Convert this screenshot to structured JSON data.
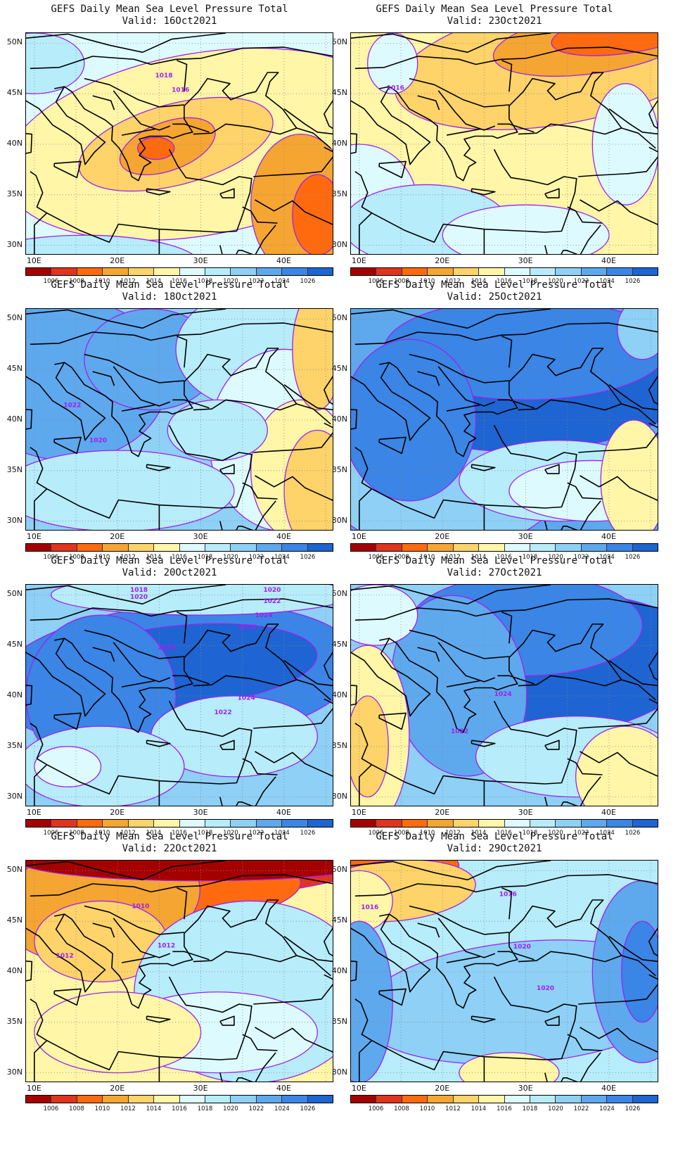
{
  "panels": [
    {
      "title": "GEFS Daily Mean Sea Level Pressure Total",
      "valid": "Valid: 16Oct2021",
      "contour_labels": [
        "1018",
        "1016"
      ],
      "dominant_colors": [
        "#fff6a8",
        "#fdd36a",
        "#f5a531",
        "#ff6a0e",
        "#b7ecfb",
        "#ddfbff"
      ]
    },
    {
      "title": "GEFS Daily Mean Sea Level Pressure Total",
      "valid": "Valid: 23Oct2021",
      "contour_labels": [
        "1016"
      ],
      "dominant_colors": [
        "#fff6a8",
        "#fdd36a",
        "#f5a531",
        "#ff6a0e",
        "#ddfbff"
      ]
    },
    {
      "title": "GEFS Daily Mean Sea Level Pressure Total",
      "valid": "Valid: 18Oct2021",
      "contour_labels": [
        "1022",
        "1020"
      ],
      "dominant_colors": [
        "#5ea8ee",
        "#8ed0f6",
        "#b7ecfb",
        "#fff6a8",
        "#fdd36a"
      ]
    },
    {
      "title": "GEFS Daily Mean Sea Level Pressure Total",
      "valid": "Valid: 25Oct2021",
      "contour_labels": [],
      "dominant_colors": [
        "#1e64d2",
        "#3a85e6",
        "#5ea8ee",
        "#b7ecfb",
        "#fff6a8"
      ]
    },
    {
      "title": "GEFS Daily Mean Sea Level Pressure Total",
      "valid": "Valid: 20Oct2021",
      "contour_labels": [
        "1018",
        "1020",
        "1020",
        "1022",
        "1024",
        "1026",
        "1026",
        "1024",
        "1022"
      ],
      "dominant_colors": [
        "#1e64d2",
        "#3a85e6",
        "#5ea8ee",
        "#8ed0f6",
        "#b7ecfb"
      ]
    },
    {
      "title": "GEFS Daily Mean Sea Level Pressure Total",
      "valid": "Valid: 27Oct2021",
      "contour_labels": [
        "1024",
        "1022"
      ],
      "dominant_colors": [
        "#1e64d2",
        "#3a85e6",
        "#b7ecfb",
        "#fff6a8",
        "#fdd36a"
      ]
    },
    {
      "title": "GEFS Daily Mean Sea Level Pressure Total",
      "valid": "Valid: 22Oct2021",
      "contour_labels": [
        "1010",
        "1012",
        "1012"
      ],
      "dominant_colors": [
        "#b40e0e",
        "#e1341e",
        "#ff6a0e",
        "#f5a531",
        "#fdd36a",
        "#fff6a8",
        "#ddfbff"
      ]
    },
    {
      "title": "GEFS Daily Mean Sea Level Pressure Total",
      "valid": "Valid: 29Oct2021",
      "contour_labels": [
        "1016",
        "1016",
        "1020",
        "1020"
      ],
      "dominant_colors": [
        "#ff6a0e",
        "#fdd36a",
        "#b7ecfb",
        "#8ed0f6",
        "#5ea8ee"
      ]
    }
  ],
  "axes": {
    "lat_labels": [
      "50N",
      "45N",
      "40N",
      "35N",
      "30N"
    ],
    "lon_labels": [
      "10E",
      "20E",
      "30E",
      "40E"
    ],
    "lat_range": [
      29,
      51
    ],
    "lon_range": [
      9,
      46
    ]
  },
  "colorbar": {
    "labels": [
      "1006",
      "1008",
      "1010",
      "1012",
      "1014",
      "1016",
      "1018",
      "1020",
      "1022",
      "1024",
      "1026"
    ],
    "colors": [
      "#a50000",
      "#e1341e",
      "#ff6a0e",
      "#f5a531",
      "#fdd36a",
      "#fff6a8",
      "#ddfbff",
      "#b7ecfb",
      "#8ed0f6",
      "#5ea8ee",
      "#3a85e6",
      "#1e64d2"
    ]
  },
  "contour_color": "#a020f0"
}
